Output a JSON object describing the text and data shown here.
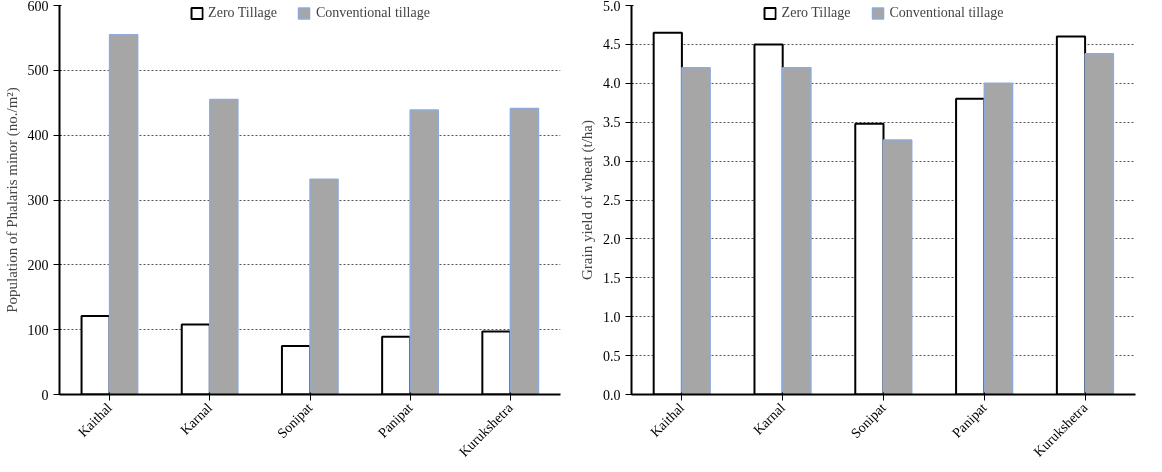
{
  "chart_data": [
    {
      "type": "bar",
      "ylabel": "Population of Phalaris minor (no./m²)",
      "categories": [
        "Kaithal",
        "Karnal",
        "Sonipat",
        "Panipat",
        "Kurukshetra"
      ],
      "series": [
        {
          "name": "Zero Tillage",
          "color": "#ffffff",
          "values": [
            121,
            108,
            75,
            89,
            97
          ]
        },
        {
          "name": "Conventional tillage",
          "color": "#a6a6a6",
          "values": [
            555,
            455,
            332,
            439,
            441
          ]
        }
      ],
      "ylim": [
        0,
        600
      ],
      "yticks": [
        0,
        100,
        200,
        300,
        400,
        500,
        600
      ],
      "grid": "y",
      "legend": "top"
    },
    {
      "type": "bar",
      "ylabel": "Grain yield of wheat (t/ha)",
      "categories": [
        "Kaithal",
        "Karnal",
        "Sonipat",
        "Panipat",
        "Kurukshetra"
      ],
      "series": [
        {
          "name": "Zero Tillage",
          "color": "#ffffff",
          "values": [
            4.65,
            4.5,
            3.48,
            3.8,
            4.6
          ]
        },
        {
          "name": "Conventional tillage",
          "color": "#a6a6a6",
          "values": [
            4.2,
            4.2,
            3.27,
            4.0,
            4.38
          ]
        }
      ],
      "ylim": [
        0,
        5
      ],
      "yticks": [
        {
          "value": 0,
          "label": "0.0"
        },
        0.5,
        {
          "value": 1,
          "label": "1.0"
        },
        1.5,
        {
          "value": 2,
          "label": "2.0"
        },
        2.5,
        {
          "value": 3,
          "label": "3.0"
        },
        3.5,
        {
          "value": 4,
          "label": "4.0"
        },
        4.5,
        {
          "value": 5,
          "label": "5.0"
        }
      ],
      "grid": "y",
      "legend": "top"
    }
  ]
}
